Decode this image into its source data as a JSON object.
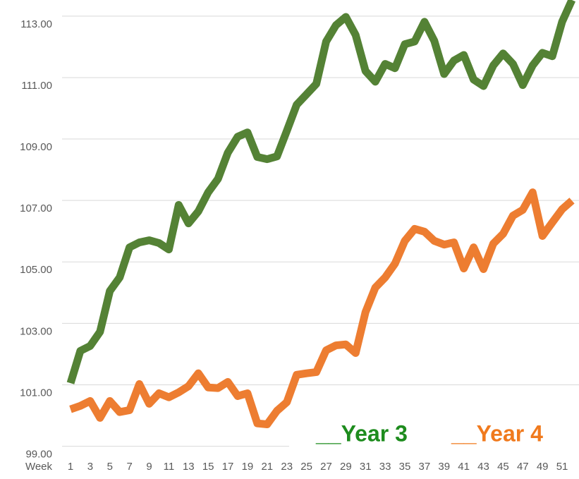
{
  "chart_data": {
    "type": "line",
    "xlabel": "Week",
    "categories": [
      1,
      null,
      3,
      null,
      5,
      null,
      7,
      null,
      9,
      null,
      11,
      null,
      13,
      null,
      15,
      null,
      17,
      null,
      19,
      null,
      21,
      null,
      23,
      null,
      25,
      null,
      27,
      null,
      29,
      null,
      31,
      null,
      33,
      null,
      35,
      null,
      37,
      null,
      39,
      null,
      41,
      null,
      43,
      null,
      45,
      null,
      47,
      null,
      49,
      null,
      51,
      null
    ],
    "series": [
      {
        "name": "__Year 3",
        "color": "#548235",
        "legend_color": "#1e8c1e",
        "values": [
          101.33,
          102.38,
          102.54,
          103.0,
          104.33,
          104.77,
          105.75,
          105.91,
          105.98,
          105.89,
          105.68,
          107.13,
          106.53,
          106.92,
          107.54,
          107.98,
          108.83,
          109.35,
          109.49,
          108.69,
          108.62,
          108.71,
          109.54,
          110.39,
          110.73,
          111.07,
          112.45,
          112.98,
          113.25,
          112.66,
          111.49,
          111.14,
          111.72,
          111.58,
          112.36,
          112.45,
          113.09,
          112.47,
          111.39,
          111.83,
          112.01,
          111.21,
          111.0,
          111.67,
          112.06,
          111.72,
          111.03,
          111.67,
          112.08,
          111.97,
          113.09,
          113.8
        ]
      },
      {
        "name": "__Year 4",
        "color": "#ed7d31",
        "legend_color": "#f07a1e",
        "values": [
          100.48,
          100.59,
          100.75,
          100.2,
          100.75,
          100.39,
          100.45,
          101.3,
          100.66,
          101.0,
          100.87,
          101.03,
          101.23,
          101.65,
          101.19,
          101.17,
          101.37,
          100.91,
          101.0,
          100.02,
          99.99,
          100.43,
          100.71,
          101.6,
          101.65,
          101.69,
          102.4,
          102.56,
          102.59,
          102.31,
          103.64,
          104.44,
          104.77,
          105.22,
          105.96,
          106.35,
          106.26,
          105.96,
          105.84,
          105.91,
          105.06,
          105.75,
          105.04,
          105.87,
          106.19,
          106.78,
          106.97,
          107.54,
          106.12,
          106.56,
          106.99,
          107.27
        ]
      }
    ],
    "ylim": [
      99,
      113.8
    ],
    "yticks": [
      {
        "value": 99,
        "label": "99.00"
      },
      {
        "value": 101,
        "label": "101.00"
      },
      {
        "value": 103,
        "label": "103.00"
      },
      {
        "value": 105,
        "label": "105.00"
      },
      {
        "value": 107,
        "label": "107.00"
      },
      {
        "value": 109,
        "label": "109.00"
      },
      {
        "value": 111,
        "label": "111.00"
      },
      {
        "value": 113,
        "label": "113.00"
      }
    ],
    "grid": true
  }
}
